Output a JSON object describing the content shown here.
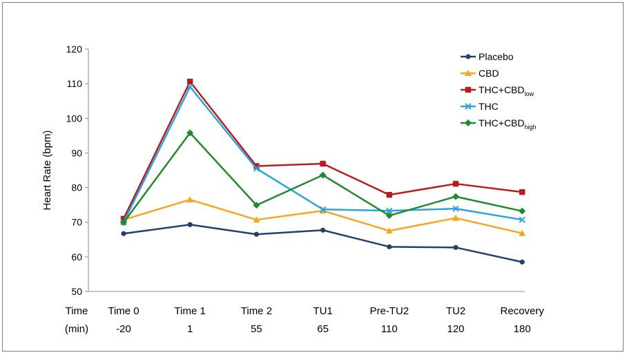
{
  "chart_data": {
    "type": "line",
    "ylabel": "Heart Rate (bpm)",
    "ylim": [
      50,
      120
    ],
    "yticks": [
      50,
      60,
      70,
      80,
      90,
      100,
      110,
      120
    ],
    "x_axis_header": [
      "Time",
      "(min)"
    ],
    "categories": [
      {
        "name": "Time 0",
        "minutes": "-20"
      },
      {
        "name": "Time 1",
        "minutes": "1"
      },
      {
        "name": "Time 2",
        "minutes": "55"
      },
      {
        "name": "TU1",
        "minutes": "65"
      },
      {
        "name": "Pre-TU2",
        "minutes": "110"
      },
      {
        "name": "TU2",
        "minutes": "120"
      },
      {
        "name": "Recovery",
        "minutes": "180"
      }
    ],
    "legend_position": "top-right",
    "grid": false,
    "series": [
      {
        "name": "Placebo",
        "name_main": "Placebo",
        "name_sub": "",
        "color": "#243f6e",
        "marker": "circle",
        "values": [
          66.7,
          69.3,
          66.5,
          67.7,
          62.9,
          62.7,
          58.5
        ]
      },
      {
        "name": "CBD",
        "name_main": "CBD",
        "name_sub": "",
        "color": "#f5a623",
        "marker": "triangle",
        "values": [
          70.7,
          76.5,
          70.7,
          73.3,
          67.5,
          71.2,
          66.8
        ]
      },
      {
        "name": "THC+CBDlow",
        "name_main": "THC+CBD",
        "name_sub": "low",
        "color": "#b81d1d",
        "marker": "square",
        "values": [
          71.0,
          110.6,
          86.2,
          86.9,
          77.9,
          81.1,
          78.7
        ]
      },
      {
        "name": "THC",
        "name_main": "THC",
        "name_sub": "",
        "color": "#2aa3e0",
        "marker": "x",
        "values": [
          70.0,
          109.1,
          85.5,
          73.7,
          73.3,
          73.9,
          70.7
        ]
      },
      {
        "name": "THC+CBDhigh",
        "name_main": "THC+CBD",
        "name_sub": "high",
        "color": "#1f8a2e",
        "marker": "diamond",
        "values": [
          69.9,
          95.8,
          74.9,
          83.6,
          71.9,
          77.4,
          73.2
        ]
      }
    ]
  }
}
